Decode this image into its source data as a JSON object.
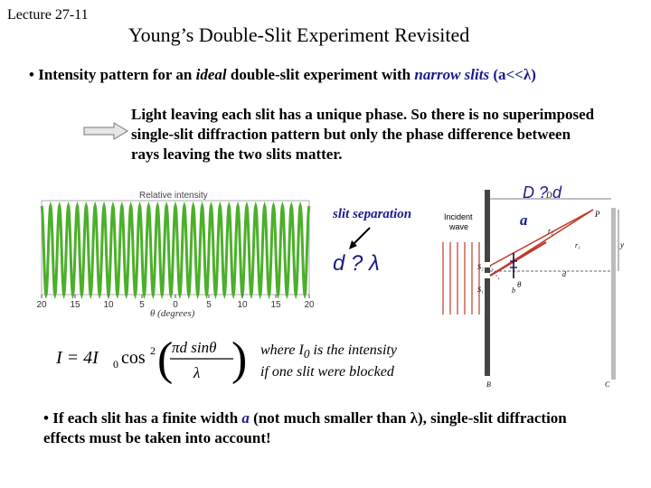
{
  "header": {
    "lecture": "Lecture 27-11",
    "title": "Young’s Double-Slit Experiment Revisited"
  },
  "bullet1": {
    "prefix": "• Intensity pattern for an ",
    "ideal": "ideal",
    "middle": " double-slit experiment with ",
    "narrow": "narrow slits",
    "cond": " (a<<λ)"
  },
  "description": "Light leaving each slit has a unique phase. So there is no superimposed single-slit diffraction pattern but only the phase difference between rays leaving the two slits matter.",
  "chart_data": {
    "type": "line",
    "title": "Relative intensity",
    "xlabel": "θ (degrees)",
    "ylabel": "",
    "x_tick_labels": [
      "20",
      "15",
      "10",
      "5",
      "0",
      "5",
      "10",
      "15",
      "20"
    ],
    "xlim": [
      -20,
      20
    ],
    "ylim": [
      0,
      1
    ],
    "series": [
      {
        "function": "cos^2 fringes of equal height",
        "fringe_count": 30
      }
    ],
    "color": "#4caf2a"
  },
  "annotations": {
    "slit_separation": "slit separation",
    "d_lambda": "d ? λ",
    "D_d": "D ? d",
    "a_label": "a"
  },
  "diagram": {
    "incident_wave": [
      "Incident",
      "wave"
    ],
    "labels": {
      "D": "D",
      "P": "P",
      "r2": "r₂",
      "r1": "r₁",
      "y": "y",
      "S2": "S₂",
      "S1": "S₁",
      "d": "d",
      "theta": "θ",
      "B": "B",
      "C": "C",
      "b": "b"
    }
  },
  "formula": {
    "I": "I = 4I",
    "sub0": "0",
    "cos": "cos",
    "exp": "2",
    "num": "πd sinθ",
    "den": "λ"
  },
  "where_text": {
    "line1_a": "where I",
    "line1_sub": "0",
    "line1_b": " is the intensity",
    "line2": "if one slit were blocked"
  },
  "bullet2": {
    "prefix": "• If each slit has a finite width ",
    "a": "a",
    "suffix": " (not much smaller than λ), single-slit diffraction effects must be taken into account!"
  }
}
